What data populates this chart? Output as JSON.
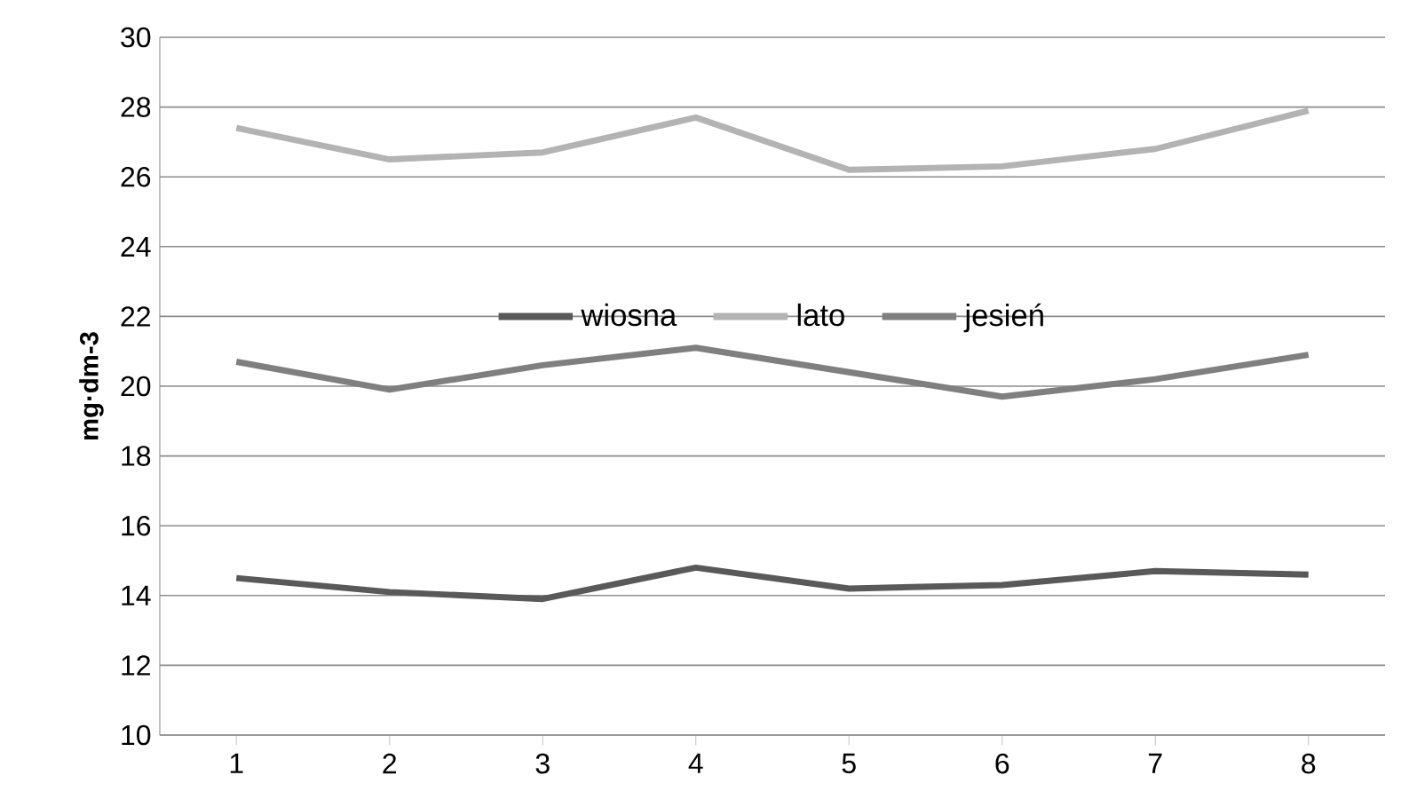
{
  "chart_data": {
    "type": "line",
    "ylabel": "mg·dm-3",
    "categories": [
      "1",
      "2",
      "3",
      "4",
      "5",
      "6",
      "7",
      "8"
    ],
    "series": [
      {
        "name": "wiosna",
        "color": "#595959",
        "values": [
          14.5,
          14.1,
          13.9,
          14.8,
          14.2,
          14.3,
          14.7,
          14.6
        ]
      },
      {
        "name": "lato",
        "color": "#b3b3b3",
        "values": [
          27.4,
          26.5,
          26.7,
          27.7,
          26.2,
          26.3,
          26.8,
          27.9
        ]
      },
      {
        "name": "jesień",
        "color": "#7f7f7f",
        "values": [
          20.7,
          19.9,
          20.6,
          21.1,
          20.4,
          19.7,
          20.2,
          20.9
        ]
      }
    ],
    "ylim": [
      10,
      30
    ],
    "yticks": [
      10,
      12,
      14,
      16,
      18,
      20,
      22,
      24,
      26,
      28,
      30
    ],
    "grid": "y",
    "legend": "center",
    "marker": "none",
    "line_style": "solid"
  }
}
